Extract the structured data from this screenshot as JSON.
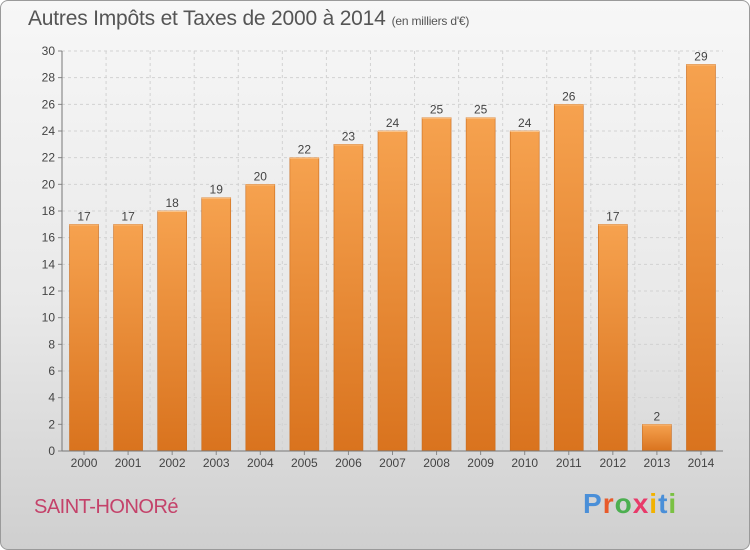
{
  "title": "Autres Impôts et Taxes de 2000 à 2014",
  "unit": "(en milliers d'€)",
  "commune": "SAINT-HONORé",
  "logo": {
    "letters": [
      "P",
      "r",
      "o",
      "x",
      "i",
      "t",
      "i"
    ],
    "colors": [
      "#4a8fd8",
      "#e85a2a",
      "#4caf50",
      "#e83a6a",
      "#f2b200",
      "#4a8fd8",
      "#7ac143"
    ]
  },
  "colors": {
    "bar_top": "#f6a24f",
    "bar_bottom": "#d9731e",
    "grid": "#d2d2d2",
    "text": "#444444"
  },
  "chart_data": {
    "type": "bar",
    "categories": [
      "2000",
      "2001",
      "2002",
      "2003",
      "2004",
      "2005",
      "2006",
      "2007",
      "2008",
      "2009",
      "2010",
      "2011",
      "2012",
      "2013",
      "2014"
    ],
    "values": [
      17,
      17,
      18,
      19,
      20,
      22,
      23,
      24,
      25,
      25,
      24,
      26,
      17,
      2,
      29
    ],
    "yticks": [
      0,
      2,
      4,
      6,
      8,
      10,
      12,
      14,
      16,
      18,
      20,
      22,
      24,
      26,
      28,
      30
    ],
    "ylim": [
      0,
      30
    ],
    "grid": true,
    "data_labels": true
  }
}
